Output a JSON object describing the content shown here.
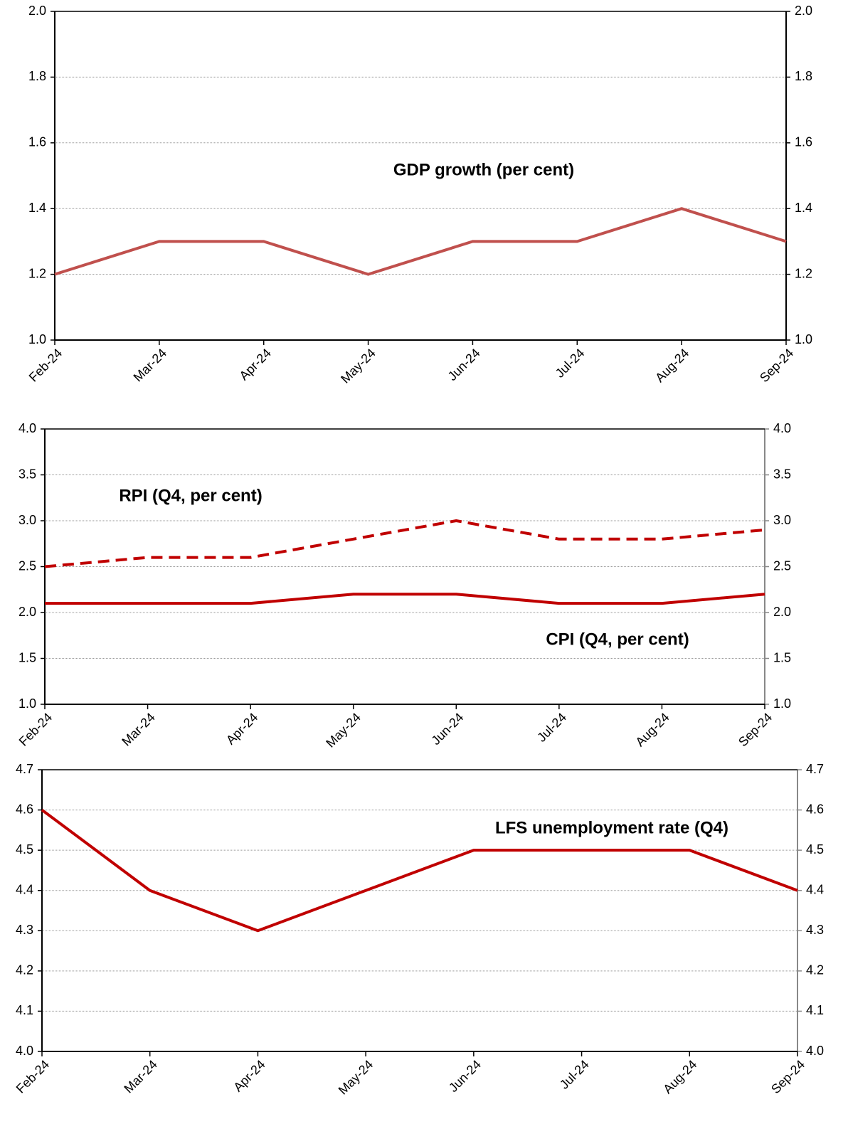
{
  "chart_data": [
    {
      "type": "line",
      "title": "GDP growth (per cent)",
      "categories": [
        "Feb-24",
        "Mar-24",
        "Apr-24",
        "May-24",
        "Jun-24",
        "Jul-24",
        "Aug-24",
        "Sep-24"
      ],
      "series": [
        {
          "name": null,
          "color": "#c0504d",
          "style": "solid",
          "values": [
            1.2,
            1.3,
            1.3,
            1.2,
            1.3,
            1.3,
            1.4,
            1.3
          ]
        }
      ],
      "ylim": [
        1,
        2
      ],
      "yticks": [
        {
          "value": 1,
          "label": "1.0"
        },
        1.2,
        1.4,
        1.6,
        1.8,
        {
          "value": 2,
          "label": "2.0"
        }
      ],
      "grid": true
    },
    {
      "type": "line",
      "categories": [
        "Feb-24",
        "Mar-24",
        "Apr-24",
        "May-24",
        "Jun-24",
        "Jul-24",
        "Aug-24",
        "Sep-24"
      ],
      "series": [
        {
          "name": "RPI (Q4, per cent)",
          "color": "#c00000",
          "style": "dashed",
          "values": [
            2.5,
            2.6,
            2.6,
            2.8,
            3.0,
            2.8,
            2.8,
            2.9
          ]
        },
        {
          "name": "CPI (Q4, per cent)",
          "color": "#c00000",
          "style": "solid",
          "values": [
            2.1,
            2.1,
            2.1,
            2.2,
            2.2,
            2.1,
            2.1,
            2.2
          ]
        }
      ],
      "ylim": [
        1,
        4
      ],
      "yticks": [
        {
          "value": 1,
          "label": "1.0"
        },
        1.5,
        {
          "value": 2,
          "label": "2.0"
        },
        2.5,
        {
          "value": 3,
          "label": "3.0"
        },
        3.5,
        {
          "value": 4,
          "label": "4.0"
        }
      ],
      "grid": true
    },
    {
      "type": "line",
      "title": "LFS unemployment rate (Q4)",
      "categories": [
        "Feb-24",
        "Mar-24",
        "Apr-24",
        "May-24",
        "Jun-24",
        "Jul-24",
        "Aug-24",
        "Sep-24"
      ],
      "series": [
        {
          "name": null,
          "color": "#c00000",
          "style": "solid",
          "values": [
            4.6,
            4.4,
            4.3,
            4.4,
            4.5,
            4.5,
            4.5,
            4.4
          ]
        }
      ],
      "ylim": [
        4,
        4.7
      ],
      "yticks": [
        {
          "value": 4,
          "label": "4.0"
        },
        4.1,
        4.2,
        4.3,
        4.4,
        4.5,
        4.6,
        4.7
      ],
      "grid": true
    }
  ]
}
